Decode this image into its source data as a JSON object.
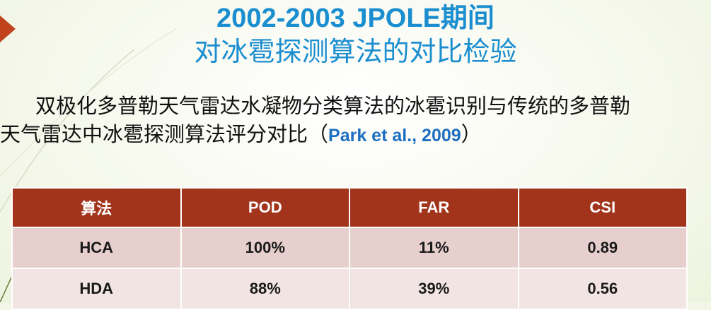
{
  "slide": {
    "title_line1": "2002-2003 JPOLE期间",
    "title_line2": "对冰雹探测算法的对比检验",
    "body_line1": "双极化多普勒天气雷达水凝物分类算法的冰雹识别与传统的多普勒",
    "body_line2_prefix": "天气雷达中冰雹探测算法评分对比（",
    "body_citation": "Park et al., 2009",
    "body_line2_suffix": "）",
    "title_color": "#1b8ed0",
    "header_color": "#a2341c"
  },
  "table": {
    "headers": [
      "算法",
      "POD",
      "FAR",
      "CSI"
    ],
    "rows": [
      [
        "HCA",
        "100%",
        "11%",
        "0.89"
      ],
      [
        "HDA",
        "88%",
        "39%",
        "0.56"
      ]
    ]
  }
}
